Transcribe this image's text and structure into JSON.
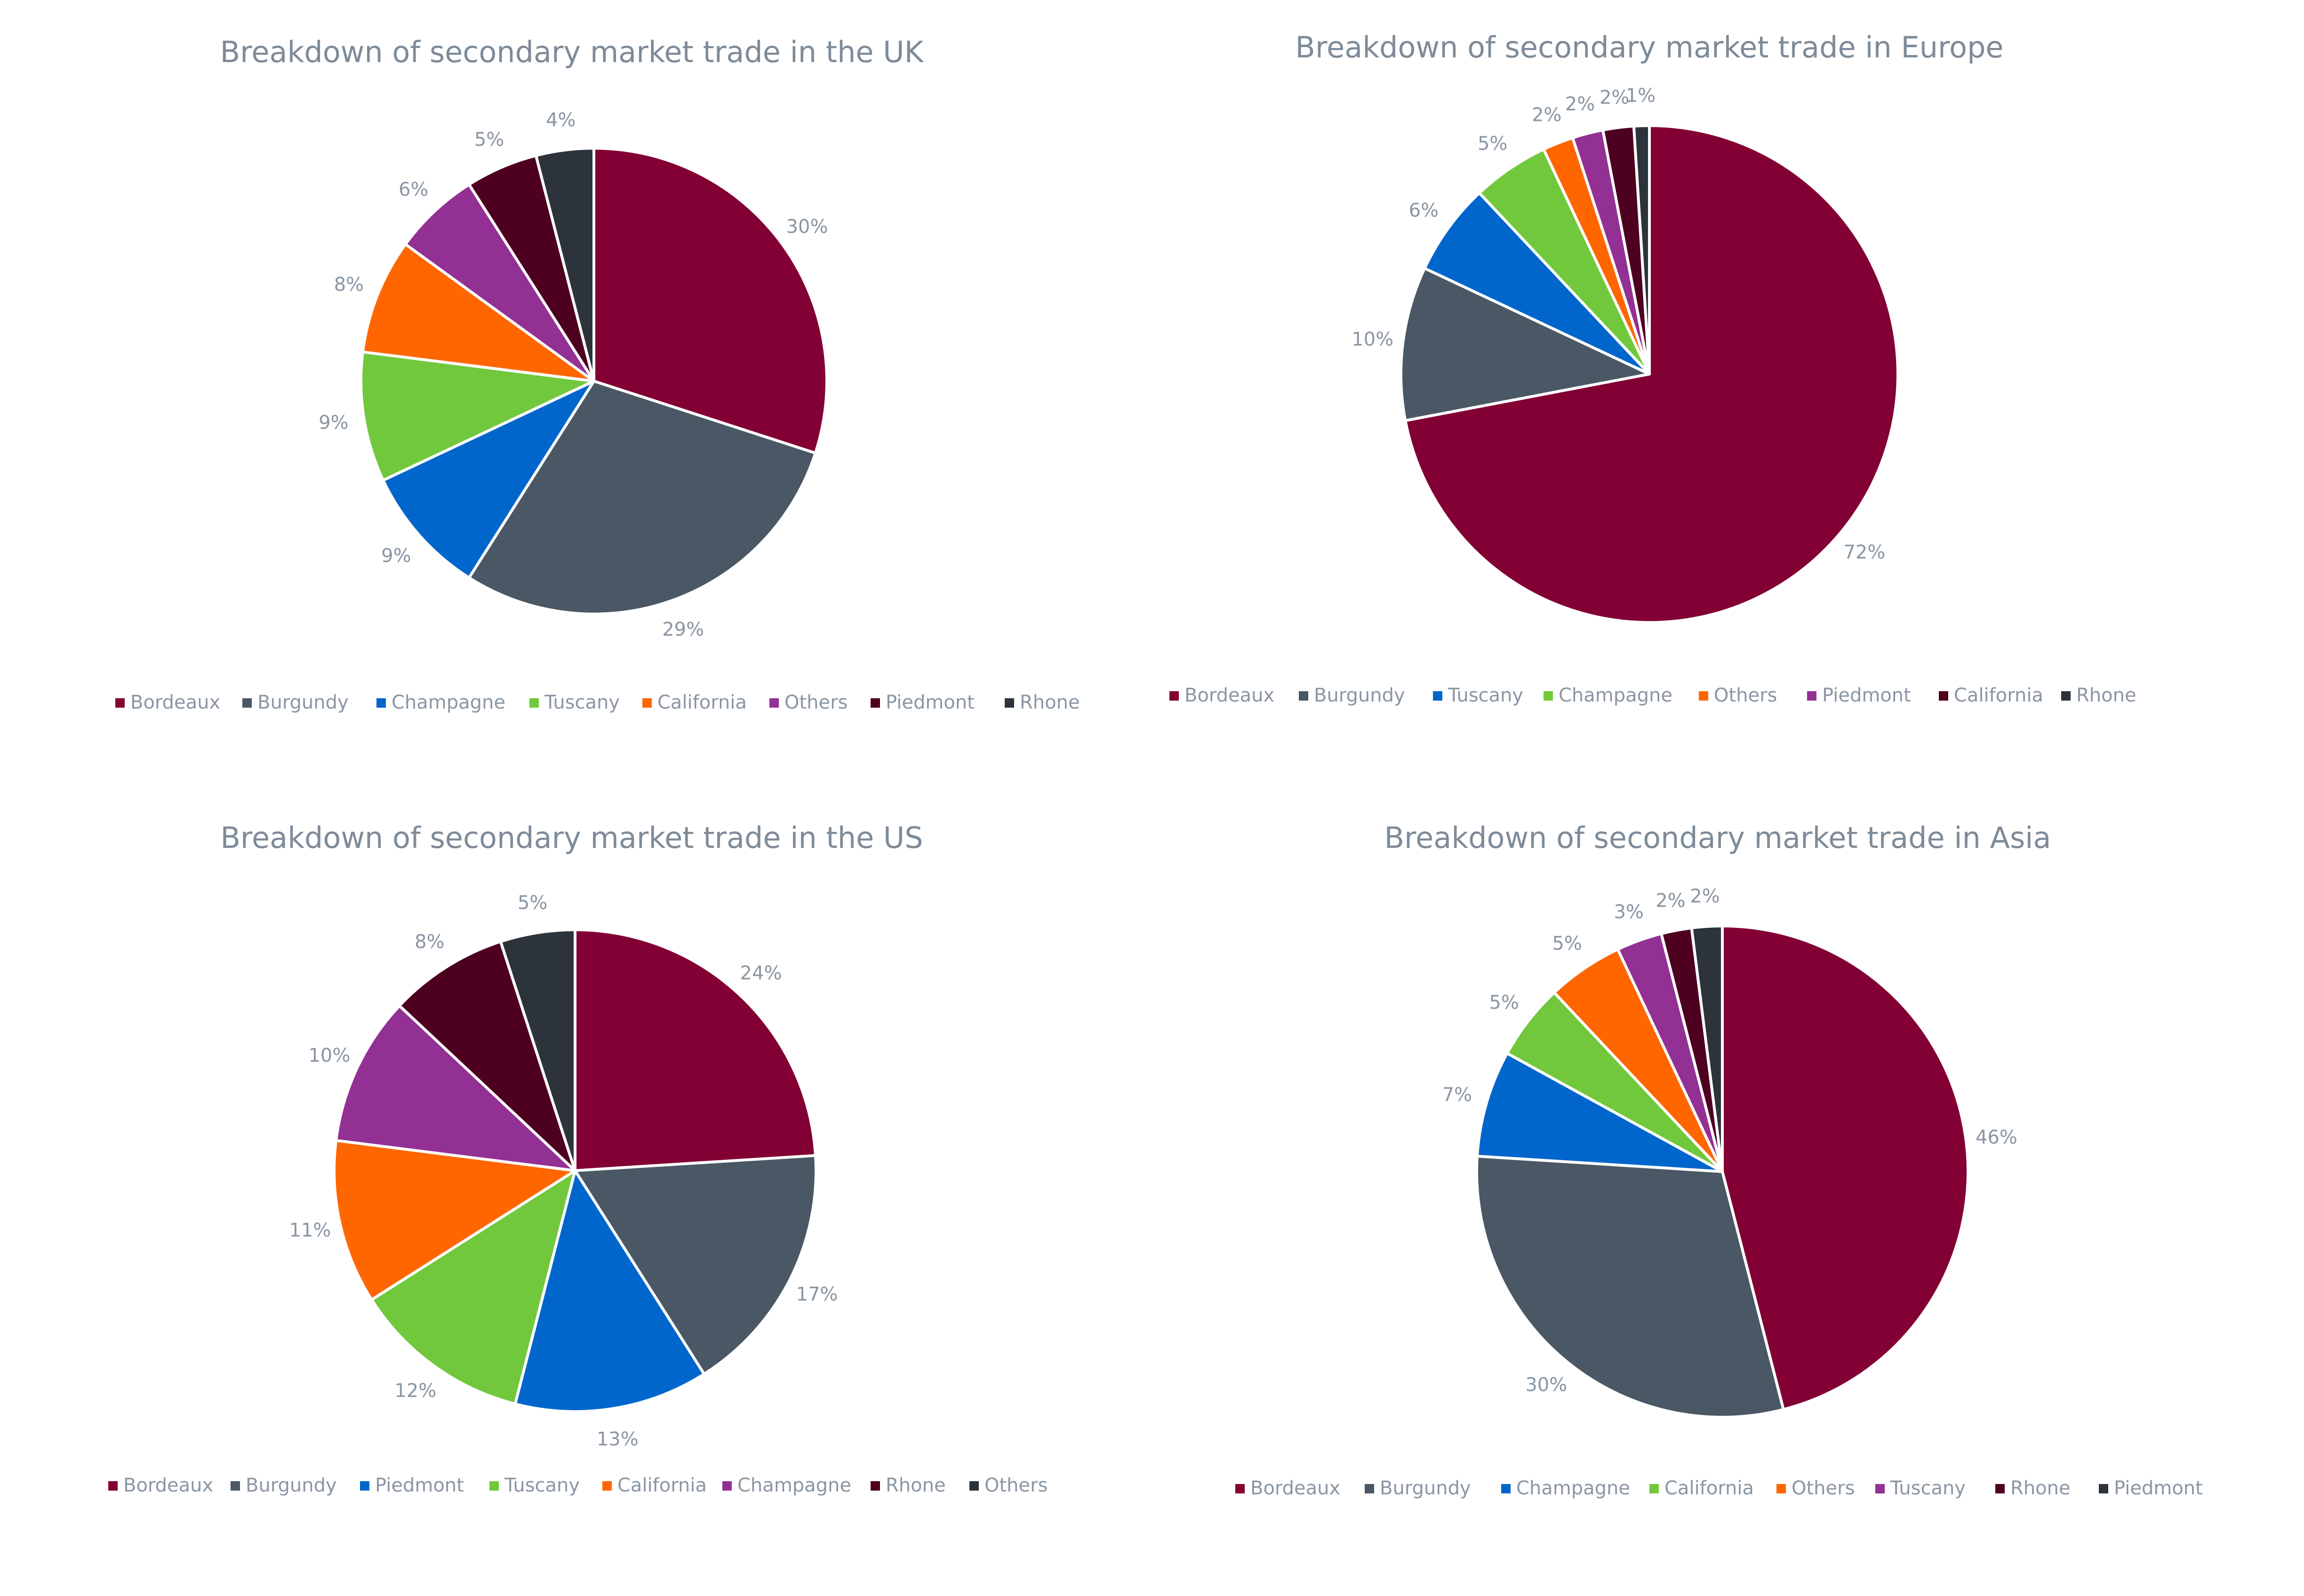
{
  "chart_data": [
    {
      "type": "pie",
      "title": "Breakdown of secondary market trade in the UK",
      "legend_position": "bottom",
      "categories": [
        "Bordeaux",
        "Burgundy",
        "Champagne",
        "Tuscany",
        "California",
        "Others",
        "Piedmont",
        "Rhone"
      ],
      "values": [
        30,
        29,
        9,
        9,
        8,
        6,
        5,
        4
      ],
      "labels": [
        "30%",
        "29%",
        "9%",
        "9%",
        "8%",
        "6%",
        "5%",
        "4%"
      ],
      "colors": [
        "#820033",
        "#4a5764",
        "#0066cc",
        "#72c83c",
        "#ff6600",
        "#933094",
        "#4d0020",
        "#2c333b"
      ]
    },
    {
      "type": "pie",
      "title": "Breakdown of secondary market trade in Europe",
      "legend_position": "bottom",
      "categories": [
        "Bordeaux",
        "Burgundy",
        "Tuscany",
        "Champagne",
        "Others",
        "Piedmont",
        "California",
        "Rhone"
      ],
      "values": [
        72,
        10,
        6,
        5,
        2,
        2,
        2,
        1
      ],
      "labels": [
        "72%",
        "10%",
        "6%",
        "5%",
        "2%",
        "2%",
        "2%",
        "1%"
      ],
      "colors": [
        "#820033",
        "#4a5764",
        "#0066cc",
        "#72c83c",
        "#ff6600",
        "#933094",
        "#4d0020",
        "#2c333b"
      ]
    },
    {
      "type": "pie",
      "title": "Breakdown of secondary market trade in the US",
      "legend_position": "bottom",
      "categories": [
        "Bordeaux",
        "Burgundy",
        "Piedmont",
        "Tuscany",
        "California",
        "Champagne",
        "Rhone",
        "Others"
      ],
      "values": [
        24,
        17,
        13,
        12,
        11,
        10,
        8,
        5
      ],
      "labels": [
        "24%",
        "17%",
        "13%",
        "12%",
        "11%",
        "10%",
        "8%",
        "5%"
      ],
      "colors": [
        "#820033",
        "#4a5764",
        "#0066cc",
        "#72c83c",
        "#ff6600",
        "#933094",
        "#4d0020",
        "#2c333b"
      ]
    },
    {
      "type": "pie",
      "title": "Breakdown of secondary market trade in Asia",
      "legend_position": "bottom",
      "categories": [
        "Bordeaux",
        "Burgundy",
        "Champagne",
        "California",
        "Others",
        "Tuscany",
        "Rhone",
        "Piedmont"
      ],
      "values": [
        46,
        30,
        7,
        5,
        5,
        3,
        2,
        2
      ],
      "labels": [
        "46%",
        "30%",
        "7%",
        "5%",
        "5%",
        "3%",
        "2%",
        "2%"
      ],
      "colors": [
        "#820033",
        "#4a5764",
        "#0066cc",
        "#72c83c",
        "#ff6600",
        "#933094",
        "#4d0020",
        "#2c333b"
      ]
    }
  ]
}
